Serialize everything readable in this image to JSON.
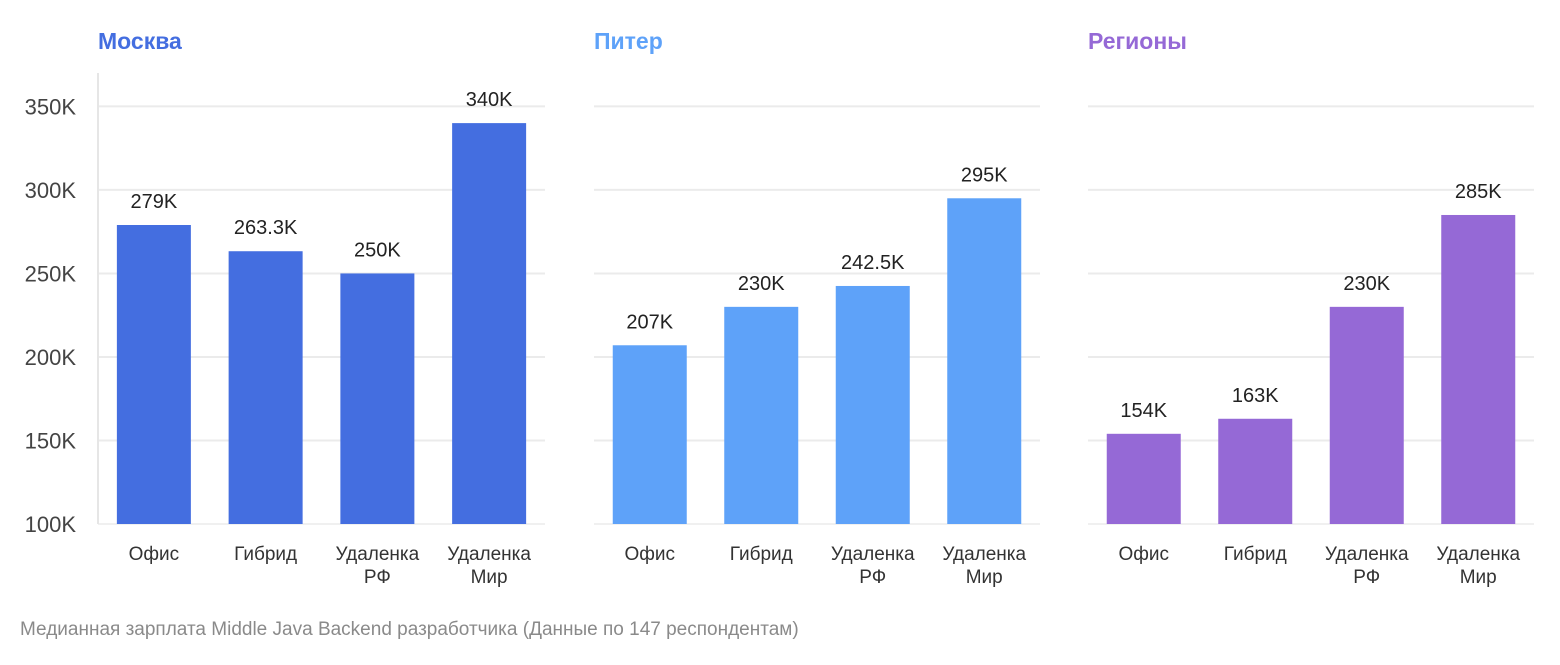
{
  "caption": "Медианная зарплата Middle Java Backend разработчика (Данные по 147 респондентам)",
  "chart_data": [
    {
      "type": "bar",
      "title": "Москва",
      "color": "#446ee0",
      "categories": [
        [
          "Офис"
        ],
        [
          "Гибрид"
        ],
        [
          "Удаленка",
          "РФ"
        ],
        [
          "Удаленка",
          "Мир"
        ]
      ],
      "values": [
        279000,
        263300,
        250000,
        340000
      ],
      "value_labels": [
        "279K",
        "263.3K",
        "250K",
        "340K"
      ],
      "ylim": [
        100000,
        370000
      ],
      "yticks": [
        100000,
        150000,
        200000,
        250000,
        300000,
        350000
      ],
      "ytick_labels": [
        "100K",
        "150K",
        "200K",
        "250K",
        "300K",
        "350K"
      ],
      "grid": true
    },
    {
      "type": "bar",
      "title": "Питер",
      "color": "#5ea2f9",
      "categories": [
        [
          "Офис"
        ],
        [
          "Гибрид"
        ],
        [
          "Удаленка",
          "РФ"
        ],
        [
          "Удаленка",
          "Мир"
        ]
      ],
      "values": [
        207000,
        230000,
        242500,
        295000
      ],
      "value_labels": [
        "207K",
        "230K",
        "242.5K",
        "295K"
      ],
      "ylim": [
        100000,
        370000
      ],
      "yticks": [
        100000,
        150000,
        200000,
        250000,
        300000,
        350000
      ],
      "ytick_labels": [],
      "grid": true
    },
    {
      "type": "bar",
      "title": "Регионы",
      "color": "#9569d6",
      "categories": [
        [
          "Офис"
        ],
        [
          "Гибрид"
        ],
        [
          "Удаленка",
          "РФ"
        ],
        [
          "Удаленка",
          "Мир"
        ]
      ],
      "values": [
        154000,
        163000,
        230000,
        285000
      ],
      "value_labels": [
        "154K",
        "163K",
        "230K",
        "285K"
      ],
      "ylim": [
        100000,
        370000
      ],
      "yticks": [
        100000,
        150000,
        200000,
        250000,
        300000,
        350000
      ],
      "ytick_labels": [],
      "grid": true
    }
  ]
}
